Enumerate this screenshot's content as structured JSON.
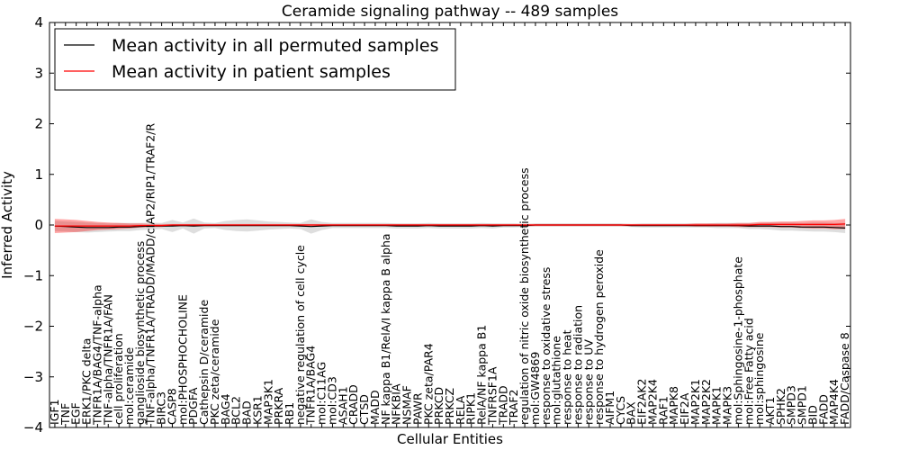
{
  "chart_data": {
    "type": "line",
    "title": "Ceramide signaling pathway -- 489 samples",
    "xlabel": "Cellular Entities",
    "ylabel": "Inferred Activity",
    "ylim": [
      -4,
      4
    ],
    "yticks": [
      -4,
      -3,
      -2,
      -1,
      0,
      1,
      2,
      3,
      4
    ],
    "grid": false,
    "legend_position": "top-left",
    "categories": [
      "IGF1",
      "TNF",
      "EGF",
      "ERK1/PKC delta",
      "TNFR1A/BAG4/TNF-alpha",
      "TNF-alpha/TNFR1A/FAN",
      "cell proliferation",
      "mol:ceramide",
      "ganglioside biosynthetic process",
      "TNF-alpha/TNFR1A/TRADD/MADD/cIAP2/RIP1/TRAF2/R",
      "BIRC3",
      "CASP8",
      "mol:PHOSPHOCHOLINE",
      "PDGFA",
      "Cathepsin D/ceramide",
      "PKC zeta/ceramide",
      "BAG4",
      "BCL2",
      "BAD",
      "KSR1",
      "MAP3K1",
      "PRKRA",
      "RB1",
      "negative regulation of cell cycle",
      "TNFR1A/BAG4",
      "mol:C11AG",
      "mol:CD3",
      "ASAH1",
      "CRADD",
      "CTSD",
      "MADD",
      "NF kappa B1/RelA/I kappa B alpha",
      "NFKBIA",
      "NSMAF",
      "PAWR",
      "PKC zeta/PAR4",
      "PRKCD",
      "PRKCZ",
      "RELA",
      "RIPK1",
      "RelA/NF kappa B1",
      "TNFRSF1A",
      "TRADD",
      "TRAF2",
      "regulation of nitric oxide biosynthetic process",
      "mol:GW4869",
      "response to oxidative stress",
      "mol:glutathione",
      "response to heat",
      "response to radiation",
      "response to UV",
      "response to hydrogen peroxide",
      "AIFM1",
      "CYCS",
      "BAX",
      "EIF2AK2",
      "MAP2K4",
      "RAF1",
      "MAPK8",
      "EIF2A",
      "MAP2K1",
      "MAP2K2",
      "MAPK1",
      "MAPK3",
      "mol:Sphingosine-1-phosphate",
      "mol:Free Fatty acid",
      "mol:sphingosine",
      "AKT1",
      "SPHK2",
      "SMPD3",
      "SMPD1",
      "BID",
      "FADD",
      "MAP4K4",
      "FADD/Caspase 8"
    ],
    "series": [
      {
        "name": "Mean activity in all permuted samples",
        "color": "#000000",
        "values": [
          -0.02,
          -0.03,
          -0.04,
          -0.05,
          -0.05,
          -0.05,
          -0.04,
          -0.04,
          -0.03,
          -0.02,
          -0.02,
          -0.02,
          -0.01,
          -0.02,
          -0.01,
          -0.01,
          -0.01,
          -0.01,
          -0.01,
          -0.01,
          -0.01,
          -0.01,
          -0.01,
          -0.02,
          -0.03,
          -0.02,
          -0.01,
          -0.01,
          -0.01,
          -0.01,
          -0.01,
          -0.01,
          -0.02,
          -0.02,
          -0.02,
          -0.01,
          -0.02,
          -0.02,
          -0.02,
          -0.02,
          -0.01,
          -0.02,
          -0.01,
          -0.01,
          -0.01,
          0.0,
          0.0,
          0.0,
          0.0,
          0.0,
          0.0,
          0.0,
          0.0,
          0.0,
          -0.01,
          -0.01,
          -0.01,
          -0.01,
          -0.01,
          -0.01,
          -0.01,
          -0.01,
          -0.01,
          -0.01,
          -0.01,
          -0.02,
          -0.02,
          -0.02,
          -0.03,
          -0.03,
          -0.04,
          -0.04,
          -0.04,
          -0.05,
          -0.06
        ],
        "band": [
          0.1,
          0.1,
          0.1,
          0.1,
          0.09,
          0.08,
          0.08,
          0.08,
          0.07,
          0.07,
          0.06,
          0.12,
          0.06,
          0.15,
          0.06,
          0.05,
          0.09,
          0.11,
          0.12,
          0.1,
          0.08,
          0.07,
          0.06,
          0.06,
          0.14,
          0.08,
          0.05,
          0.05,
          0.05,
          0.05,
          0.05,
          0.05,
          0.05,
          0.05,
          0.05,
          0.05,
          0.05,
          0.05,
          0.05,
          0.05,
          0.05,
          0.05,
          0.04,
          0.04,
          0.03,
          0.03,
          0.03,
          0.03,
          0.03,
          0.03,
          0.03,
          0.03,
          0.03,
          0.03,
          0.03,
          0.04,
          0.04,
          0.04,
          0.04,
          0.04,
          0.04,
          0.04,
          0.05,
          0.05,
          0.05,
          0.06,
          0.06,
          0.07,
          0.08,
          0.08,
          0.08,
          0.09,
          0.09,
          0.09,
          0.1
        ]
      },
      {
        "name": "Mean activity in patient samples",
        "color": "#ff0000",
        "values": [
          -0.02,
          -0.02,
          -0.02,
          -0.02,
          -0.02,
          -0.02,
          -0.02,
          -0.02,
          -0.01,
          -0.01,
          -0.01,
          0.0,
          0.0,
          0.0,
          0.0,
          0.0,
          0.0,
          0.0,
          0.0,
          0.0,
          0.0,
          0.0,
          0.0,
          0.0,
          0.0,
          0.0,
          0.0,
          0.0,
          0.0,
          0.0,
          0.0,
          0.0,
          0.0,
          0.0,
          0.0,
          0.0,
          0.0,
          0.0,
          0.0,
          0.0,
          0.0,
          0.0,
          0.0,
          0.0,
          0.0,
          0.0,
          0.0,
          0.0,
          0.0,
          0.0,
          0.0,
          0.0,
          0.0,
          0.0,
          0.0,
          0.0,
          0.0,
          0.0,
          0.0,
          0.0,
          0.0,
          0.0,
          0.0,
          0.0,
          0.0,
          0.0,
          0.01,
          0.01,
          0.01,
          0.01,
          0.01,
          0.01,
          0.01,
          0.01,
          0.02
        ],
        "band": [
          0.14,
          0.13,
          0.12,
          0.1,
          0.08,
          0.07,
          0.06,
          0.05,
          0.04,
          0.03,
          0.03,
          0.02,
          0.02,
          0.02,
          0.02,
          0.02,
          0.02,
          0.02,
          0.02,
          0.02,
          0.02,
          0.02,
          0.02,
          0.02,
          0.02,
          0.02,
          0.02,
          0.02,
          0.02,
          0.02,
          0.02,
          0.02,
          0.02,
          0.02,
          0.02,
          0.02,
          0.02,
          0.02,
          0.02,
          0.02,
          0.02,
          0.02,
          0.02,
          0.02,
          0.02,
          0.02,
          0.02,
          0.02,
          0.02,
          0.02,
          0.02,
          0.02,
          0.02,
          0.02,
          0.02,
          0.02,
          0.02,
          0.02,
          0.02,
          0.02,
          0.03,
          0.03,
          0.03,
          0.03,
          0.04,
          0.04,
          0.05,
          0.05,
          0.06,
          0.06,
          0.07,
          0.08,
          0.08,
          0.09,
          0.1
        ]
      }
    ]
  }
}
